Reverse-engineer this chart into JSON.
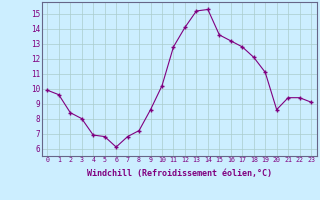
{
  "x": [
    0,
    1,
    2,
    3,
    4,
    5,
    6,
    7,
    8,
    9,
    10,
    11,
    12,
    13,
    14,
    15,
    16,
    17,
    18,
    19,
    20,
    21,
    22,
    23
  ],
  "y": [
    9.9,
    9.6,
    8.4,
    8.0,
    6.9,
    6.8,
    6.1,
    6.8,
    7.2,
    8.6,
    10.2,
    12.8,
    14.1,
    15.2,
    15.3,
    13.6,
    13.2,
    12.8,
    12.1,
    11.1,
    8.6,
    9.4,
    9.4,
    9.1
  ],
  "line_color": "#800080",
  "marker": "P",
  "marker_size": 2.5,
  "bg_color": "#cceeff",
  "grid_color": "#aacccc",
  "xlabel": "Windchill (Refroidissement éolien,°C)",
  "xlim": [
    -0.5,
    23.5
  ],
  "ylim": [
    5.5,
    15.8
  ],
  "yticks": [
    6,
    7,
    8,
    9,
    10,
    11,
    12,
    13,
    14,
    15
  ],
  "xtick_labels": [
    "0",
    "1",
    "2",
    "3",
    "4",
    "5",
    "6",
    "7",
    "8",
    "9",
    "10",
    "11",
    "12",
    "13",
    "14",
    "15",
    "16",
    "17",
    "18",
    "19",
    "20",
    "21",
    "22",
    "23"
  ],
  "axis_label_color": "#800080",
  "tick_label_color": "#800080",
  "border_color": "#666688"
}
